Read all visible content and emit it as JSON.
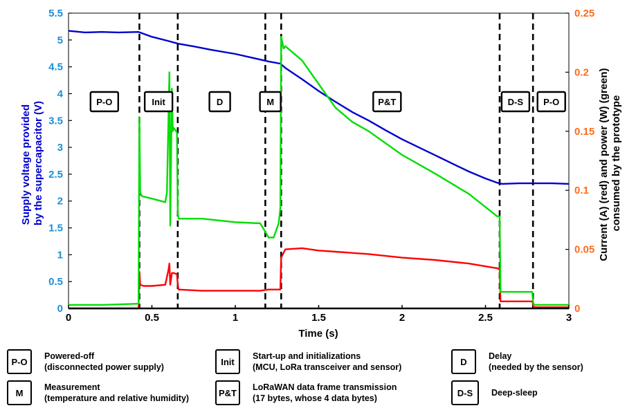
{
  "chart_data": {
    "type": "line",
    "xlabel": "Time (s)",
    "ylabel_left": [
      "Supply voltage provided",
      "by the supercapacitor (V)"
    ],
    "ylabel_right": [
      "Current (A) (red) and power (W) (green)",
      "consumed by the prototype"
    ],
    "xlim": [
      0,
      3
    ],
    "ylim_left": [
      0,
      5.5
    ],
    "ylim_right": [
      0,
      0.25
    ],
    "x_ticks": [
      "0",
      "0.5",
      "1",
      "1.5",
      "2",
      "2.5",
      "3"
    ],
    "y_left_ticks": [
      "0",
      "0.5",
      "1",
      "1.5",
      "2",
      "2.5",
      "3",
      "3.5",
      "4",
      "4.5",
      "5",
      "5.5"
    ],
    "y_right_ticks": [
      "0",
      "0.05",
      "0.1",
      "0.15",
      "0.2",
      "0.25"
    ],
    "grid": false,
    "colors": {
      "voltage": "#0000cc",
      "current": "#ff0000",
      "power": "#00dd00",
      "left_axis": "#1a8fd6",
      "right_axis": "#ff6a1a"
    },
    "series": [
      {
        "color": "#0000cc",
        "axis": "left",
        "x": [
          0,
          0.1,
          0.2,
          0.3,
          0.42,
          0.5,
          0.6,
          0.66,
          0.75,
          0.85,
          1.0,
          1.1,
          1.2,
          1.27,
          1.3,
          1.4,
          1.5,
          1.6,
          1.7,
          1.8,
          1.9,
          2.0,
          2.1,
          2.2,
          2.3,
          2.4,
          2.5,
          2.57,
          2.6,
          2.7,
          2.8,
          2.9,
          3.0
        ],
        "values": [
          5.17,
          5.14,
          5.15,
          5.14,
          5.15,
          5.06,
          4.98,
          4.93,
          4.88,
          4.82,
          4.74,
          4.67,
          4.6,
          4.56,
          4.48,
          4.27,
          4.05,
          3.85,
          3.66,
          3.5,
          3.32,
          3.15,
          3.0,
          2.85,
          2.7,
          2.55,
          2.42,
          2.34,
          2.32,
          2.33,
          2.33,
          2.33,
          2.32
        ]
      },
      {
        "color": "#ff0000",
        "axis": "right",
        "x": [
          0,
          0.2,
          0.42,
          0.425,
          0.43,
          0.45,
          0.5,
          0.58,
          0.6,
          0.605,
          0.61,
          0.62,
          0.63,
          0.65,
          0.655,
          0.66,
          0.8,
          1.0,
          1.15,
          1.2,
          1.25,
          1.27,
          1.275,
          1.3,
          1.4,
          1.5,
          1.6,
          1.8,
          2.0,
          2.2,
          2.4,
          2.57,
          2.585,
          2.59,
          2.7,
          2.78,
          2.785,
          2.79,
          2.9,
          3.0
        ],
        "values": [
          0.0,
          0.0,
          0.0,
          0.031,
          0.02,
          0.019,
          0.019,
          0.02,
          0.033,
          0.038,
          0.02,
          0.03,
          0.03,
          0.029,
          0.02,
          0.016,
          0.015,
          0.015,
          0.015,
          0.016,
          0.016,
          0.016,
          0.043,
          0.05,
          0.051,
          0.049,
          0.048,
          0.046,
          0.043,
          0.041,
          0.038,
          0.034,
          0.033,
          0.006,
          0.006,
          0.006,
          0.004,
          0.001,
          0.001,
          0.001
        ]
      },
      {
        "color": "#00dd00",
        "axis": "right",
        "x": [
          0,
          0.2,
          0.42,
          0.425,
          0.43,
          0.44,
          0.5,
          0.58,
          0.59,
          0.605,
          0.61,
          0.62,
          0.625,
          0.63,
          0.65,
          0.655,
          0.66,
          0.8,
          1.0,
          1.15,
          1.2,
          1.23,
          1.26,
          1.27,
          1.275,
          1.29,
          1.3,
          1.4,
          1.5,
          1.6,
          1.7,
          1.8,
          2.0,
          2.2,
          2.4,
          2.57,
          2.585,
          2.59,
          2.7,
          2.78,
          2.785,
          2.79,
          2.9,
          3.0
        ],
        "values": [
          0.003,
          0.003,
          0.004,
          0.162,
          0.098,
          0.095,
          0.093,
          0.09,
          0.098,
          0.2,
          0.07,
          0.186,
          0.15,
          0.153,
          0.149,
          0.08,
          0.076,
          0.076,
          0.073,
          0.072,
          0.06,
          0.06,
          0.072,
          0.085,
          0.23,
          0.22,
          0.222,
          0.21,
          0.19,
          0.17,
          0.158,
          0.15,
          0.13,
          0.114,
          0.097,
          0.078,
          0.078,
          0.014,
          0.014,
          0.014,
          0.006,
          0.003,
          0.003,
          0.003
        ]
      }
    ],
    "phase_boundaries": [
      0.425,
      0.655,
      1.18,
      1.275,
      2.585,
      2.785
    ],
    "phases": [
      {
        "label": "P-O",
        "x": 0.215
      },
      {
        "label": "Init",
        "x": 0.54
      },
      {
        "label": "D",
        "x": 0.907
      },
      {
        "label": "M",
        "x": 1.21
      },
      {
        "label": "P&T",
        "x": 1.91
      },
      {
        "label": "D-S",
        "x": 2.68
      },
      {
        "label": "P-O",
        "x": 2.895
      }
    ]
  },
  "legend": [
    {
      "abbr": "P-O",
      "lines": [
        "Powered-off",
        "(disconnected power supply)"
      ]
    },
    {
      "abbr": "Init",
      "lines": [
        "Start-up and initializations",
        "(MCU, LoRa transceiver and sensor)"
      ]
    },
    {
      "abbr": "D",
      "lines": [
        "Delay",
        "(needed by the sensor)"
      ]
    },
    {
      "abbr": "M",
      "lines": [
        "Measurement",
        "(temperature and relative humidity)"
      ]
    },
    {
      "abbr": "P&T",
      "lines": [
        "LoRaWAN data frame transmission",
        "(17 bytes, whose 4 data bytes)"
      ]
    },
    {
      "abbr": "D-S",
      "lines": [
        "Deep-sleep"
      ]
    }
  ]
}
